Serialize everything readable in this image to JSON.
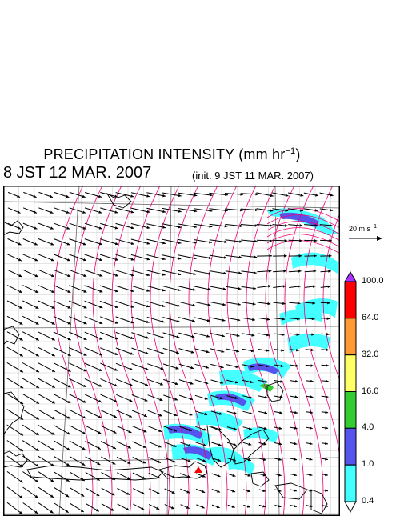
{
  "title": {
    "text": "PRECIPITATION INTENSITY (mm hr",
    "unit_exponent": "−1",
    "close_paren": ")"
  },
  "datetime": "8 JST 12 MAR. 2007",
  "init": "(init. 9 JST 11 MAR. 2007)",
  "reference_vector": {
    "label": "20 m s",
    "exponent": "−1"
  },
  "colorbar": {
    "labels": [
      "100.0",
      "64.0",
      "32.0",
      "16.0",
      "4.0",
      "1.0",
      "0.4"
    ],
    "colors": [
      "#ff0000",
      "#ff9933",
      "#ffff66",
      "#33cc33",
      "#5555ee",
      "#44ffff"
    ],
    "over_color": "#aa33ff",
    "under_color": "#ffffff"
  },
  "map": {
    "marker_color": "#ff0000",
    "isobar_color": "#ee0077"
  }
}
